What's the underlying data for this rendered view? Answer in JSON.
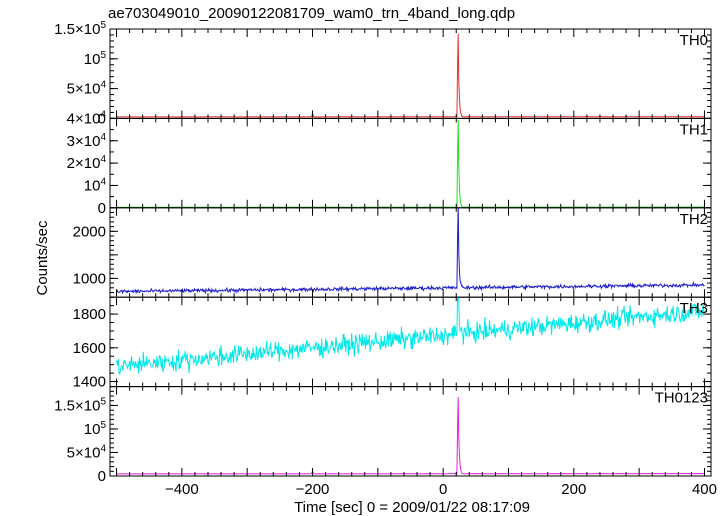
{
  "chart_data": {
    "type": "line",
    "title": "ae703049010_20090122081709_wam0_trn_4band_long.qdp",
    "xlabel": "Time [sec] 0 = 2009/01/22 08:17:09",
    "ylabel": "Counts/sec",
    "xlim": [
      -510,
      410
    ],
    "x_ticks": [
      {
        "value": -400,
        "label": "−400"
      },
      {
        "value": -200,
        "label": "−200"
      },
      {
        "value": 0,
        "label": "0"
      },
      {
        "value": 200,
        "label": "200"
      },
      {
        "value": 400,
        "label": "400"
      }
    ],
    "x_minor_step": 20,
    "grid": false,
    "series": [
      {
        "name": "TH0",
        "color": "#e03030",
        "ylim": [
          0,
          150000
        ],
        "y_ticks": [
          {
            "value": 0,
            "label": "0"
          },
          {
            "value": 50000,
            "label": "5×10",
            "exp": "4"
          },
          {
            "value": 100000,
            "label": "10",
            "exp": "5"
          },
          {
            "value": 150000,
            "label": "1.5×10",
            "exp": "5"
          }
        ],
        "y_minor_step": 10000,
        "baseline": 2500,
        "noise": 250,
        "trend": 300,
        "bumps": [
          {
            "x": -200,
            "peak": 5000
          }
        ],
        "burst": {
          "t0": 22,
          "peak": 150000
        }
      },
      {
        "name": "TH1",
        "color": "#22dd22",
        "ylim": [
          0,
          40000
        ],
        "y_ticks": [
          {
            "value": 0,
            "label": "0"
          },
          {
            "value": 10000,
            "label": "10",
            "exp": "4"
          },
          {
            "value": 20000,
            "label": "2×10",
            "exp": "4"
          },
          {
            "value": 30000,
            "label": "3×10",
            "exp": "4"
          },
          {
            "value": 40000,
            "label": "4×10",
            "exp": "4"
          }
        ],
        "y_minor_step": 5000,
        "baseline": 250,
        "noise": 60,
        "trend": 80,
        "bumps": [],
        "burst": {
          "t0": 22,
          "peak": 40000
        }
      },
      {
        "name": "TH2",
        "color": "#1a1acc",
        "ylim": [
          600,
          2500
        ],
        "y_ticks": [
          {
            "value": 1000,
            "label": "1000"
          },
          {
            "value": 1500,
            "label": ""
          },
          {
            "value": 2000,
            "label": "2000"
          }
        ],
        "y_minor_step": 100,
        "baseline": 720,
        "noise": 35,
        "trend": 140,
        "bumps": [],
        "burst": {
          "t0": 22,
          "peak": 2500
        }
      },
      {
        "name": "TH3",
        "color": "#00e8e8",
        "ylim": [
          1370,
          1900
        ],
        "y_ticks": [
          {
            "value": 1400,
            "label": "1400"
          },
          {
            "value": 1600,
            "label": "1600"
          },
          {
            "value": 1800,
            "label": "1800"
          }
        ],
        "y_minor_step": 50,
        "baseline": 1490,
        "noise": 55,
        "trend": 330,
        "bumps": [],
        "burst": {
          "t0": 22,
          "peak": 1900
        }
      },
      {
        "name": "TH0123",
        "color": "#dd22dd",
        "ylim": [
          0,
          190000
        ],
        "y_ticks": [
          {
            "value": 0,
            "label": "0"
          },
          {
            "value": 50000,
            "label": "5×10",
            "exp": "4"
          },
          {
            "value": 100000,
            "label": "10",
            "exp": "5"
          },
          {
            "value": 150000,
            "label": "1.5×10",
            "exp": "5"
          }
        ],
        "y_minor_step": 10000,
        "baseline": 4500,
        "noise": 350,
        "trend": 600,
        "bumps": [
          {
            "x": -200,
            "peak": 6000
          }
        ],
        "burst": {
          "t0": 22,
          "peak": 190000
        }
      }
    ]
  }
}
